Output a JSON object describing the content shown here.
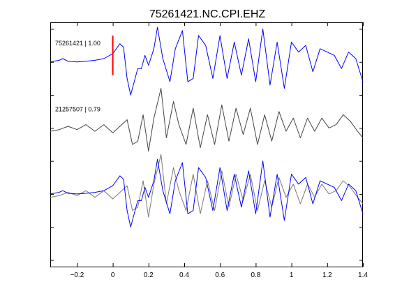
{
  "chart_data": {
    "type": "line",
    "title": "75261421.NC.CPI.EHZ",
    "xlabel": "",
    "ylabel": "",
    "xlim": [
      -0.35,
      1.4
    ],
    "ylim": [
      -2.2,
      5.2
    ],
    "grid": false,
    "x_ticks": [
      -0.2,
      0,
      0.2,
      0.4,
      0.6,
      0.8,
      1,
      1.2,
      1.4
    ],
    "x_tick_labels": [
      "−0.2",
      "0",
      "0.2",
      "0.4",
      "0.6",
      "0.8",
      "1",
      "1.2",
      "1.4"
    ],
    "pick_time": 0,
    "colors": {
      "primary": "#0000ff",
      "secondary": "#444444",
      "overlay_gray": "#7a7a7a",
      "pick": "#ff0000"
    },
    "trace_labels": [
      {
        "text": "75261421 | 1.00",
        "y": 4.5
      },
      {
        "text": "21257507 | 0.79",
        "y": 2.5
      }
    ],
    "series": [
      {
        "offset": 4,
        "color": "#0000ff",
        "x": [
          -0.35,
          -0.3,
          -0.28,
          -0.25,
          -0.2,
          -0.15,
          -0.1,
          -0.05,
          0,
          0.02,
          0.04,
          0.06,
          0.08,
          0.1,
          0.12,
          0.14,
          0.16,
          0.18,
          0.2,
          0.23,
          0.25,
          0.28,
          0.32,
          0.35,
          0.39,
          0.42,
          0.45,
          0.48,
          0.52,
          0.56,
          0.6,
          0.64,
          0.68,
          0.72,
          0.76,
          0.8,
          0.84,
          0.88,
          0.92,
          0.96,
          1,
          1.04,
          1.08,
          1.12,
          1.16,
          1.2,
          1.24,
          1.28,
          1.32,
          1.36,
          1.4
        ],
        "y": [
          0,
          0.05,
          0.1,
          0.02,
          0,
          0.02,
          0.05,
          0.1,
          0.25,
          0.4,
          0.55,
          0.45,
          -0.5,
          -1.0,
          -0.6,
          -0.2,
          -0.2,
          0.2,
          -0.1,
          0.4,
          1.05,
          0.1,
          -0.6,
          0.4,
          0.95,
          -0.6,
          -0.5,
          0.8,
          0.5,
          -0.5,
          0.8,
          -0.5,
          0.6,
          -0.4,
          0.7,
          -0.6,
          1.0,
          -0.7,
          0.6,
          -0.8,
          0.6,
          0.3,
          0.5,
          -0.3,
          0.4,
          0.3,
          0.2,
          -0.2,
          0.3,
          0.1,
          -0.6
        ]
      },
      {
        "offset": 2,
        "color": "#444444",
        "x": [
          -0.35,
          -0.3,
          -0.25,
          -0.2,
          -0.15,
          -0.1,
          -0.05,
          0,
          0.05,
          0.08,
          0.11,
          0.14,
          0.17,
          0.2,
          0.23,
          0.27,
          0.3,
          0.34,
          0.37,
          0.41,
          0.45,
          0.49,
          0.53,
          0.57,
          0.61,
          0.65,
          0.69,
          0.73,
          0.77,
          0.81,
          0.85,
          0.89,
          0.93,
          0.97,
          1.01,
          1.05,
          1.09,
          1.13,
          1.17,
          1.21,
          1.25,
          1.29,
          1.33,
          1.37,
          1.4
        ],
        "y": [
          -0.1,
          -0.05,
          0.05,
          -0.05,
          0.1,
          -0.1,
          0.1,
          -0.15,
          0.1,
          0.25,
          -0.5,
          -0.4,
          0.4,
          -0.7,
          0.3,
          1.2,
          -0.3,
          0.8,
          0.1,
          -0.5,
          0.6,
          -0.6,
          0.4,
          -0.5,
          0.7,
          -0.4,
          0.6,
          -0.2,
          0.6,
          -0.5,
          0.4,
          -0.4,
          0.5,
          -0.1,
          0.3,
          -0.3,
          0.3,
          -0.1,
          0.3,
          0.0,
          0.1,
          0.4,
          0.2,
          -0.1,
          -0.3
        ]
      },
      {
        "offset": 0,
        "color": "#7a7a7a",
        "x": [
          -0.35,
          -0.3,
          -0.25,
          -0.2,
          -0.15,
          -0.1,
          -0.05,
          0,
          0.05,
          0.08,
          0.11,
          0.14,
          0.17,
          0.2,
          0.23,
          0.27,
          0.3,
          0.34,
          0.37,
          0.41,
          0.45,
          0.49,
          0.53,
          0.57,
          0.61,
          0.65,
          0.69,
          0.73,
          0.77,
          0.81,
          0.85,
          0.89,
          0.93,
          0.97,
          1.01,
          1.05,
          1.09,
          1.13,
          1.17,
          1.21,
          1.25,
          1.29,
          1.33,
          1.37,
          1.4
        ],
        "y": [
          -0.1,
          -0.05,
          0.05,
          -0.05,
          0.1,
          -0.1,
          0.1,
          -0.15,
          0.1,
          0.25,
          -0.5,
          -0.4,
          0.4,
          -0.7,
          0.3,
          1.2,
          -0.3,
          0.8,
          0.1,
          -0.5,
          0.6,
          -0.6,
          0.4,
          -0.5,
          0.7,
          -0.4,
          0.6,
          -0.2,
          0.6,
          -0.5,
          0.4,
          -0.4,
          0.5,
          -0.1,
          0.3,
          -0.3,
          0.3,
          -0.1,
          0.3,
          0.0,
          0.1,
          0.4,
          0.2,
          -0.1,
          -0.3
        ]
      },
      {
        "offset": 0,
        "color": "#0000ff",
        "x": [
          -0.35,
          -0.3,
          -0.28,
          -0.25,
          -0.2,
          -0.15,
          -0.1,
          -0.05,
          0,
          0.02,
          0.04,
          0.06,
          0.08,
          0.1,
          0.12,
          0.14,
          0.16,
          0.18,
          0.2,
          0.23,
          0.25,
          0.28,
          0.32,
          0.35,
          0.39,
          0.42,
          0.45,
          0.48,
          0.52,
          0.56,
          0.6,
          0.64,
          0.68,
          0.72,
          0.76,
          0.8,
          0.84,
          0.88,
          0.92,
          0.96,
          1,
          1.04,
          1.08,
          1.12,
          1.16,
          1.2,
          1.24,
          1.28,
          1.32,
          1.36,
          1.4
        ],
        "y": [
          0,
          0.05,
          0.1,
          0.02,
          0,
          0.02,
          0.05,
          0.1,
          0.25,
          0.4,
          0.55,
          0.45,
          -0.5,
          -1.0,
          -0.6,
          -0.2,
          -0.2,
          0.2,
          -0.1,
          0.4,
          1.05,
          0.1,
          -0.6,
          0.4,
          0.95,
          -0.6,
          -0.5,
          0.8,
          0.5,
          -0.5,
          0.8,
          -0.5,
          0.6,
          -0.4,
          0.7,
          -0.6,
          1.0,
          -0.7,
          0.6,
          -0.8,
          0.6,
          0.3,
          0.5,
          -0.3,
          0.4,
          0.3,
          0.2,
          -0.2,
          0.3,
          0.1,
          -0.6
        ]
      }
    ]
  }
}
